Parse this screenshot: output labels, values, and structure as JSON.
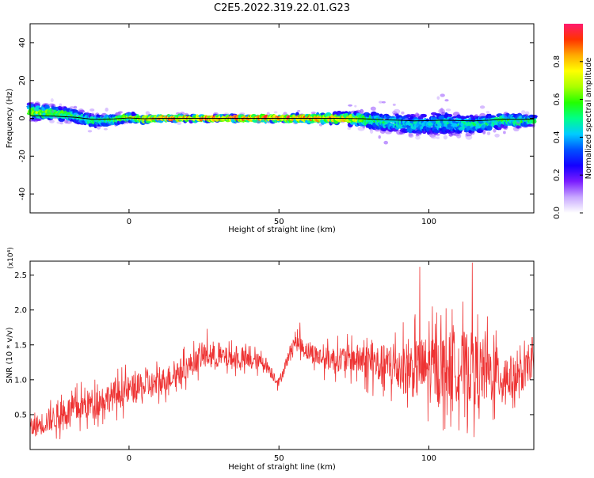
{
  "figure": {
    "title": "C2E5.2022.319.22.01.G23"
  },
  "chart_data": [
    {
      "type": "heatmap",
      "xlabel": "Height of straight line (km)",
      "ylabel": "Frequency (Hz)",
      "xlim": [
        -33,
        135
      ],
      "ylim": [
        -50,
        50
      ],
      "xticks": [
        0,
        50,
        100
      ],
      "yticks": [
        -40,
        -20,
        0,
        20,
        40
      ],
      "colorbar": {
        "label": "Normalized spectral amplitude",
        "range": [
          0,
          1
        ],
        "ticks": [
          "0.0",
          "0.2",
          "0.4",
          "0.6",
          "0.8"
        ],
        "colors": [
          "#ffffff",
          "#c8a8ff",
          "#7a1cff",
          "#1400ff",
          "#0050ff",
          "#00ccff",
          "#00ff88",
          "#22ff00",
          "#aaff00",
          "#ffff00",
          "#ffaa00",
          "#ff3300",
          "#ff1a6e"
        ]
      },
      "centerline": [
        [
          -33,
          3.5
        ],
        [
          -25,
          2.8
        ],
        [
          -18,
          1.5
        ],
        [
          -12,
          -1.5
        ],
        [
          -5,
          -0.8
        ],
        [
          0,
          0.5
        ],
        [
          5,
          -0.5
        ],
        [
          10,
          0
        ],
        [
          20,
          0
        ],
        [
          30,
          0
        ],
        [
          40,
          0
        ],
        [
          50,
          0
        ],
        [
          60,
          0
        ],
        [
          70,
          0
        ],
        [
          78,
          -0.5
        ],
        [
          85,
          -2
        ],
        [
          90,
          -2.5
        ],
        [
          95,
          -3.5
        ],
        [
          100,
          -3
        ],
        [
          105,
          -2.5
        ],
        [
          110,
          -3
        ],
        [
          115,
          -3.5
        ],
        [
          120,
          -2.5
        ],
        [
          125,
          -1
        ],
        [
          130,
          -1.5
        ],
        [
          135,
          -1
        ]
      ],
      "spread_hz": [
        [
          -33,
          4.5
        ],
        [
          -20,
          3.5
        ],
        [
          -10,
          3
        ],
        [
          0,
          2
        ],
        [
          10,
          1.2
        ],
        [
          30,
          1.2
        ],
        [
          50,
          1.5
        ],
        [
          70,
          2.5
        ],
        [
          80,
          4.5
        ],
        [
          95,
          6
        ],
        [
          105,
          7
        ],
        [
          115,
          5.5
        ],
        [
          125,
          4
        ],
        [
          135,
          3
        ]
      ],
      "peak_amplitude": [
        [
          -33,
          0.7
        ],
        [
          -20,
          0.6
        ],
        [
          -10,
          0.55
        ],
        [
          0,
          0.75
        ],
        [
          10,
          0.95
        ],
        [
          25,
          0.98
        ],
        [
          40,
          0.98
        ],
        [
          55,
          0.97
        ],
        [
          70,
          0.9
        ],
        [
          80,
          0.6
        ],
        [
          90,
          0.5
        ],
        [
          100,
          0.48
        ],
        [
          110,
          0.5
        ],
        [
          120,
          0.55
        ],
        [
          130,
          0.6
        ],
        [
          135,
          0.55
        ]
      ]
    },
    {
      "type": "line",
      "xlabel": "Height of straight line (km)",
      "ylabel": "SNR (10 * v/v)",
      "scale_label": "(x10⁴)",
      "xlim": [
        -33,
        135
      ],
      "ylim": [
        0,
        2.7
      ],
      "xticks": [
        0,
        50,
        100
      ],
      "yticks": [
        0.5,
        1.0,
        1.5,
        2.0,
        2.5
      ],
      "yticklabels": [
        "0.5",
        "1.0",
        "1.5",
        "2.0",
        "2.5"
      ],
      "color": "#ee3333",
      "trend": [
        [
          -33,
          0.3
        ],
        [
          -20,
          0.55
        ],
        [
          -10,
          0.7
        ],
        [
          0,
          0.85
        ],
        [
          10,
          0.95
        ],
        [
          20,
          1.2
        ],
        [
          25,
          1.35
        ],
        [
          35,
          1.3
        ],
        [
          45,
          1.25
        ],
        [
          50,
          0.95
        ],
        [
          55,
          1.55
        ],
        [
          60,
          1.4
        ],
        [
          65,
          1.3
        ],
        [
          75,
          1.3
        ],
        [
          85,
          1.2
        ],
        [
          95,
          1.15
        ],
        [
          100,
          1.15
        ],
        [
          110,
          1.2
        ],
        [
          120,
          1.1
        ],
        [
          130,
          1.0
        ],
        [
          135,
          1.3
        ]
      ],
      "noise_amplitude": [
        [
          -33,
          0.2
        ],
        [
          -20,
          0.3
        ],
        [
          0,
          0.3
        ],
        [
          20,
          0.25
        ],
        [
          40,
          0.2
        ],
        [
          50,
          0.1
        ],
        [
          60,
          0.2
        ],
        [
          75,
          0.3
        ],
        [
          90,
          0.5
        ],
        [
          100,
          0.7
        ],
        [
          115,
          0.75
        ],
        [
          130,
          0.4
        ],
        [
          135,
          0.3
        ]
      ],
      "peaks": [
        [
          26,
          1.73
        ],
        [
          57,
          1.82
        ],
        [
          97,
          2.62
        ],
        [
          114.5,
          2.68
        ]
      ]
    }
  ]
}
